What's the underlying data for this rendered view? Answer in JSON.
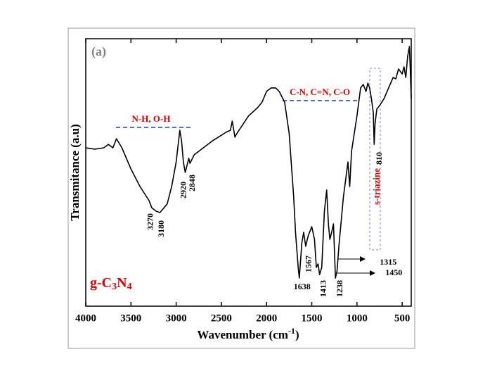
{
  "chart_data": {
    "type": "line",
    "panel_label": "(a)",
    "sample_label": [
      "g-C",
      "3",
      "N",
      "4"
    ],
    "x_label": [
      "Wavenumber (cm",
      "-1",
      ")"
    ],
    "y_label": "Transmitance (a.u)",
    "region_labels": [
      "N-H, O-H",
      "C-N, C=N, C-O",
      "s-triazine"
    ],
    "peak_labels": [
      3270,
      3180,
      2920,
      2848,
      1638,
      1567,
      1413,
      1238,
      1315,
      1450,
      810
    ],
    "color": "#000000",
    "xlim": [
      4000,
      400
    ],
    "ylim": [
      0,
      100
    ],
    "xticks": [
      4000,
      3500,
      3000,
      2500,
      2000,
      1500,
      1000,
      500
    ],
    "x": [
      4000,
      3900,
      3800,
      3750,
      3700,
      3660,
      3600,
      3500,
      3400,
      3350,
      3300,
      3270,
      3220,
      3180,
      3100,
      3050,
      3000,
      2960,
      2940,
      2920,
      2900,
      2880,
      2860,
      2848,
      2800,
      2700,
      2600,
      2500,
      2450,
      2400,
      2380,
      2350,
      2330,
      2200,
      2100,
      2050,
      2000,
      1950,
      1900,
      1860,
      1800,
      1750,
      1700,
      1680,
      1650,
      1638,
      1610,
      1590,
      1567,
      1540,
      1500,
      1470,
      1450,
      1430,
      1413,
      1390,
      1360,
      1335,
      1315,
      1300,
      1280,
      1260,
      1238,
      1220,
      1200,
      1150,
      1100,
      1080,
      1060,
      1000,
      960,
      930,
      900,
      880,
      860,
      840,
      820,
      810,
      800,
      780,
      750,
      700,
      650,
      600,
      570,
      540,
      500,
      480,
      460,
      440,
      420,
      410,
      400
    ],
    "values": [
      59.2,
      58.7,
      59.2,
      60.5,
      59.2,
      62.6,
      59.2,
      51.3,
      44.7,
      42.1,
      39.5,
      36.8,
      35.5,
      35.0,
      38.2,
      44.7,
      53.9,
      65.8,
      61.8,
      53.9,
      50.0,
      52.6,
      55.3,
      53.4,
      56.6,
      59.2,
      61.8,
      63.9,
      65.0,
      65.8,
      69.2,
      63.2,
      64.5,
      71.1,
      74.2,
      76.3,
      80.3,
      81.6,
      81.6,
      80.3,
      76.3,
      64.5,
      40.8,
      27.6,
      14.5,
      10.5,
      23.7,
      27.6,
      22.4,
      26.3,
      29.7,
      25.0,
      14.5,
      15.8,
      11.8,
      14.5,
      35.5,
      43.4,
      30.3,
      25.0,
      27.6,
      30.8,
      10.5,
      13.2,
      22.4,
      40.8,
      53.9,
      44.7,
      57.9,
      71.1,
      81.6,
      82.9,
      80.3,
      83.4,
      81.6,
      77.6,
      72.4,
      60.5,
      68.4,
      73.7,
      75.0,
      77.6,
      81.6,
      85.5,
      85.0,
      88.7,
      86.8,
      89.5,
      85.5,
      93.4,
      97.1,
      88.2,
      77.6
    ]
  }
}
